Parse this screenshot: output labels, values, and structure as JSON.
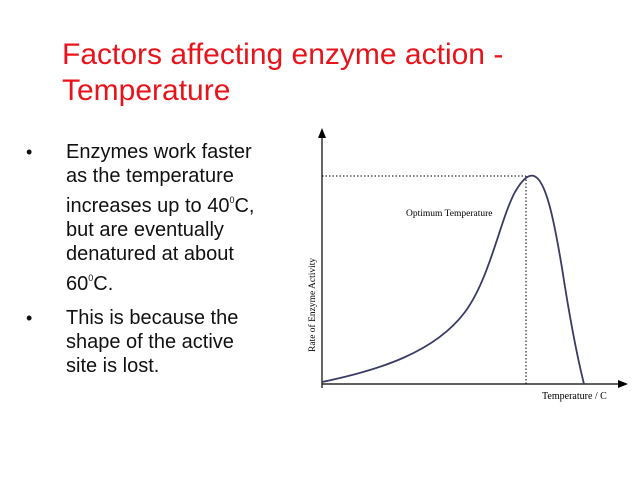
{
  "slide": {
    "title": "Factors affecting enzyme action - Temperature"
  },
  "bullets": [
    {
      "symbol": "•",
      "lines": [
        "Enzymes work faster",
        "as the temperature",
        "increases up to 40",
        "but are eventually",
        "denatured at about",
        "60"
      ],
      "sup_1": "0",
      "after_sup_1": "C,",
      "sup_2": "0",
      "after_sup_2": "C."
    },
    {
      "symbol": "•",
      "lines": [
        "This is because the",
        "shape of the active",
        "site is lost."
      ]
    }
  ],
  "graph": {
    "y_axis_label": "Rate of Enzyme Activity",
    "x_axis_label": "Temperature / C",
    "annotation": "Optimum Temperature",
    "colors": {
      "curve": "#3a3a66",
      "axis": "#000000"
    }
  }
}
